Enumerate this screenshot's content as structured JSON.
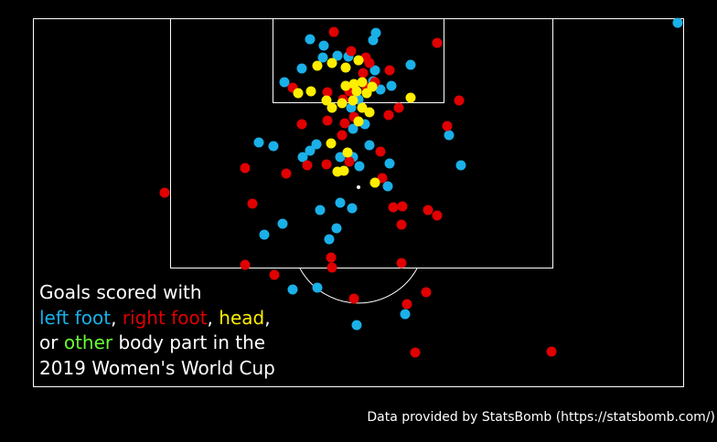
{
  "chart_data": {
    "type": "scatter",
    "colors": {
      "background": "#000000",
      "lines": "#ffffff",
      "left_foot": "#1ab0e8",
      "right_foot": "#e00000",
      "head": "#ffee00",
      "other": "#66ff33"
    },
    "legend": {
      "line1": "Goals scored with",
      "left_foot": "left foot",
      "comma1": ", ",
      "right_foot": "right foot",
      "comma2": ", ",
      "head": "head",
      "comma3": ",",
      "or": "or ",
      "other": "other",
      "rest3": " body part in the",
      "line4": "2019 Women's World Cup"
    },
    "credit": "Data provided by StatsBomb (https://statsbomb.com/)",
    "series": [
      {
        "name": "left foot",
        "color": "#1ab0e8",
        "points": [
          [
            411,
            36
          ],
          [
            339,
            43
          ],
          [
            354,
            50
          ],
          [
            408,
            44
          ],
          [
            353,
            63
          ],
          [
            330,
            75
          ],
          [
            369,
            61
          ],
          [
            381,
            62
          ],
          [
            410,
            77
          ],
          [
            449,
            71
          ],
          [
            311,
            90
          ],
          [
            408,
            89
          ],
          [
            428,
            94
          ],
          [
            416,
            98
          ],
          [
            392,
            109
          ],
          [
            384,
            118
          ],
          [
            386,
            141
          ],
          [
            399,
            136
          ],
          [
            283,
            156
          ],
          [
            299,
            160
          ],
          [
            331,
            172
          ],
          [
            339,
            165
          ],
          [
            346,
            158
          ],
          [
            372,
            172
          ],
          [
            386,
            172
          ],
          [
            404,
            159
          ],
          [
            393,
            182
          ],
          [
            426,
            179
          ],
          [
            491,
            148
          ],
          [
            504,
            181
          ],
          [
            372,
            222
          ],
          [
            350,
            230
          ],
          [
            385,
            228
          ],
          [
            309,
            245
          ],
          [
            368,
            250
          ],
          [
            360,
            262
          ],
          [
            289,
            257
          ],
          [
            320,
            317
          ],
          [
            347,
            315
          ],
          [
            443,
            344
          ],
          [
            390,
            356
          ],
          [
            741,
            25
          ],
          [
            424,
            204
          ]
        ]
      },
      {
        "name": "right foot",
        "color": "#e00000",
        "points": [
          [
            365,
            35
          ],
          [
            384,
            56
          ],
          [
            478,
            47
          ],
          [
            400,
            63
          ],
          [
            404,
            69
          ],
          [
            397,
            80
          ],
          [
            426,
            77
          ],
          [
            410,
            90
          ],
          [
            320,
            96
          ],
          [
            358,
            101
          ],
          [
            382,
            100
          ],
          [
            401,
            96
          ],
          [
            502,
            110
          ],
          [
            375,
            109
          ],
          [
            436,
            118
          ],
          [
            425,
            126
          ],
          [
            358,
            132
          ],
          [
            377,
            135
          ],
          [
            330,
            136
          ],
          [
            387,
            128
          ],
          [
            489,
            138
          ],
          [
            374,
            148
          ],
          [
            416,
            166
          ],
          [
            382,
            177
          ],
          [
            357,
            180
          ],
          [
            336,
            181
          ],
          [
            313,
            190
          ],
          [
            268,
            184
          ],
          [
            418,
            195
          ],
          [
            180,
            211
          ],
          [
            276,
            223
          ],
          [
            430,
            227
          ],
          [
            440,
            226
          ],
          [
            468,
            230
          ],
          [
            478,
            236
          ],
          [
            439,
            246
          ],
          [
            362,
            282
          ],
          [
            363,
            293
          ],
          [
            268,
            290
          ],
          [
            300,
            301
          ],
          [
            439,
            288
          ],
          [
            466,
            320
          ],
          [
            445,
            333
          ],
          [
            387,
            327
          ],
          [
            454,
            386
          ],
          [
            603,
            385
          ]
        ]
      },
      {
        "name": "head",
        "color": "#ffee00",
        "points": [
          [
            347,
            72
          ],
          [
            363,
            69
          ],
          [
            378,
            74
          ],
          [
            392,
            66
          ],
          [
            387,
            92
          ],
          [
            378,
            94
          ],
          [
            396,
            90
          ],
          [
            401,
            102
          ],
          [
            407,
            95
          ],
          [
            390,
            100
          ],
          [
            326,
            102
          ],
          [
            340,
            100
          ],
          [
            363,
            118
          ],
          [
            386,
            110
          ],
          [
            396,
            118
          ],
          [
            404,
            123
          ],
          [
            449,
            107
          ],
          [
            357,
            110
          ],
          [
            392,
            133
          ],
          [
            374,
            113
          ],
          [
            362,
            157
          ],
          [
            380,
            167
          ],
          [
            369,
            188
          ],
          [
            376,
            187
          ],
          [
            410,
            200
          ]
        ]
      },
      {
        "name": "other",
        "color": "#66ff33",
        "points": []
      }
    ]
  }
}
